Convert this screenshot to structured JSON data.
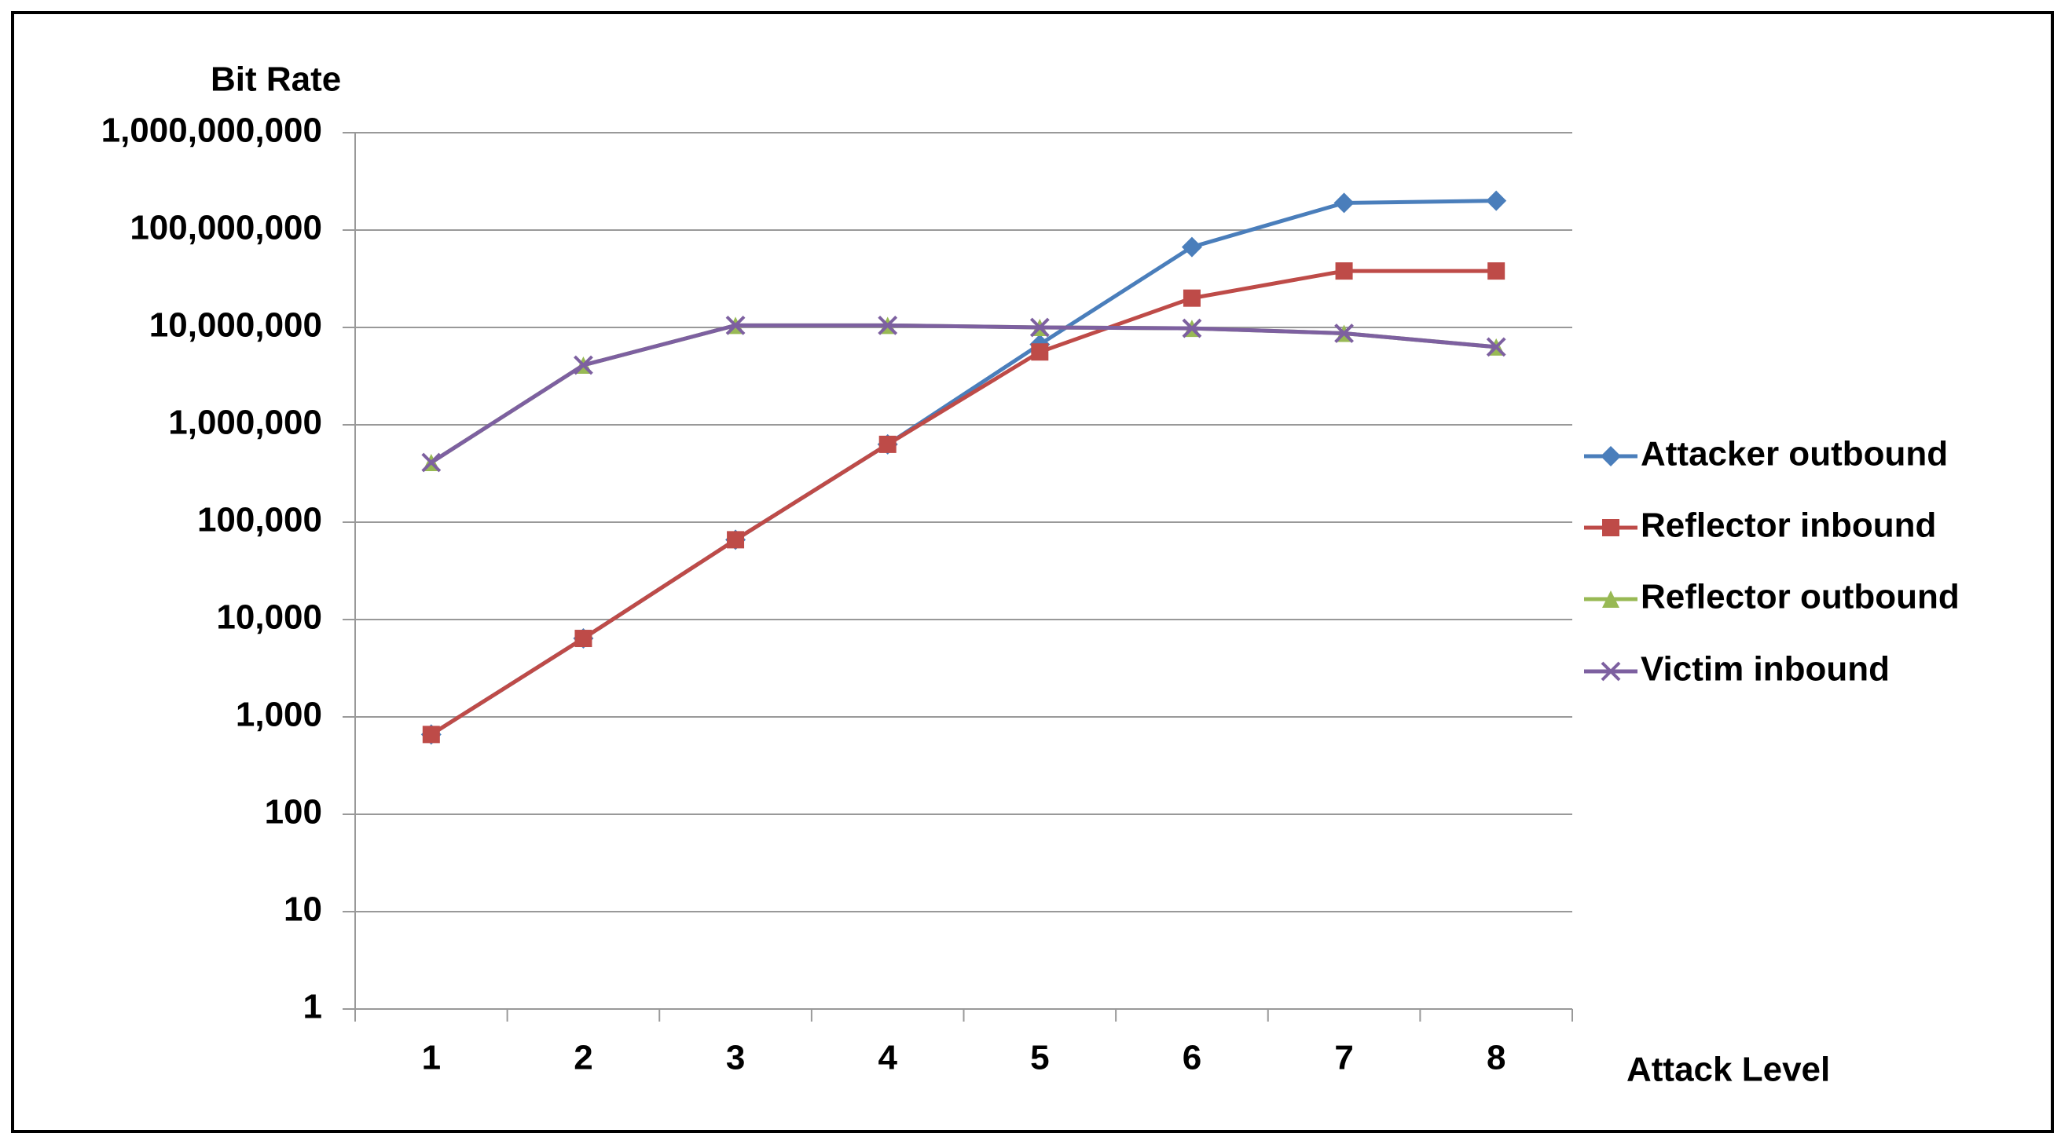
{
  "chart_data": {
    "type": "line",
    "y_label": "Bit Rate",
    "x_label": "Attack Level",
    "categories": [
      "1",
      "2",
      "3",
      "4",
      "5",
      "6",
      "7",
      "8"
    ],
    "log_scale": true,
    "grid": true,
    "legend": "right",
    "ylim": [
      1,
      1000000000
    ],
    "yticks": [
      1,
      10,
      100,
      {
        "value": 1000,
        "label": "1,000"
      },
      {
        "value": 10000,
        "label": "10,000"
      },
      {
        "value": 100000,
        "label": "100,000"
      },
      {
        "value": 1000000,
        "label": "1,000,000"
      },
      {
        "value": 10000000,
        "label": "10,000,000"
      },
      {
        "value": 100000000,
        "label": "100,000,000"
      },
      {
        "value": 1000000000,
        "label": "1,000,000,000"
      }
    ],
    "series": [
      {
        "name": "Attacker outbound",
        "color": "#4a7ebb",
        "marker": "diamond",
        "values": [
          660,
          6400,
          66000,
          630000,
          6700000,
          67000000,
          190000000,
          200000000
        ]
      },
      {
        "name": "Reflector inbound",
        "color": "#be4b48",
        "marker": "square",
        "values": [
          660,
          6400,
          66000,
          630000,
          5600000,
          20000000,
          38000000,
          38000000
        ]
      },
      {
        "name": "Reflector outbound",
        "color": "#98b954",
        "marker": "triangle",
        "values": [
          410000,
          4100000,
          10500000,
          10500000,
          10000000,
          9800000,
          8700000,
          6300000
        ]
      },
      {
        "name": "Victim inbound",
        "color": "#7d60a0",
        "marker": "x",
        "values": [
          410000,
          4100000,
          10500000,
          10500000,
          10000000,
          9800000,
          8700000,
          6300000
        ]
      }
    ]
  }
}
